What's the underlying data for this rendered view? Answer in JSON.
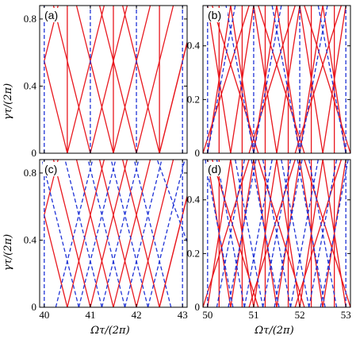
{
  "colors": {
    "red": "#e8161d",
    "blue": "#1f33d6",
    "frame": "#000000"
  },
  "ylabel": "γτ/(2π)",
  "xlabel": "Ωτ/(2π)",
  "chart_data": [
    {
      "type": "line",
      "tag": "(a)",
      "xlim": [
        39.9,
        43.1
      ],
      "ylim": [
        0,
        0.88
      ],
      "yticks": [
        0,
        0.4,
        0.8
      ],
      "ytick_labels": [
        "0",
        "0.4",
        "0.8"
      ],
      "xticks": [
        40,
        41,
        42,
        43
      ],
      "red_lines": [
        [
          [
            40.5,
            0
          ],
          [
            41.3,
            0.88
          ]
        ],
        [
          [
            41.0,
            0
          ],
          [
            41.8,
            0.88
          ]
        ],
        [
          [
            41.5,
            0
          ],
          [
            42.3,
            0.88
          ]
        ],
        [
          [
            42.0,
            0
          ],
          [
            42.8,
            0.88
          ]
        ],
        [
          [
            42.5,
            0
          ],
          [
            43.1,
            0.66
          ]
        ],
        [
          [
            40.0,
            0.55
          ],
          [
            40.5,
            0
          ]
        ],
        [
          [
            40.0,
            0.55
          ],
          [
            40.3,
            0.88
          ]
        ],
        [
          [
            41.0,
            0
          ],
          [
            40.2,
            0.88
          ]
        ],
        [
          [
            41.5,
            0
          ],
          [
            40.7,
            0.88
          ]
        ],
        [
          [
            42.0,
            0
          ],
          [
            41.2,
            0.88
          ]
        ],
        [
          [
            42.5,
            0
          ],
          [
            41.7,
            0.88
          ]
        ],
        [
          [
            43.1,
            0.66
          ],
          [
            42.5,
            0
          ]
        ],
        [
          [
            40.5,
            0
          ],
          [
            40.5,
            0.88
          ]
        ],
        [
          [
            41.5,
            0
          ],
          [
            41.5,
            0.88
          ]
        ],
        [
          [
            42.5,
            0
          ],
          [
            42.5,
            0.88
          ]
        ]
      ],
      "blue_lines": [
        [
          [
            40.0,
            0
          ],
          [
            40.0,
            0.88
          ]
        ],
        [
          [
            41.0,
            0
          ],
          [
            41.0,
            0.88
          ]
        ],
        [
          [
            42.0,
            0
          ],
          [
            42.0,
            0.88
          ]
        ],
        [
          [
            43.0,
            0
          ],
          [
            43.0,
            0.88
          ]
        ]
      ]
    },
    {
      "type": "line",
      "tag": "(b)",
      "xlim": [
        49.9,
        53.1
      ],
      "ylim": [
        0,
        0.55
      ],
      "yticks": [
        0,
        0.2,
        0.4
      ],
      "ytick_labels": [
        "0",
        "0.2",
        "0.4"
      ],
      "xticks": [
        50,
        51,
        52,
        53
      ],
      "red_lines": [
        [
          [
            50.0,
            0
          ],
          [
            50.5,
            0.55
          ]
        ],
        [
          [
            50.5,
            0
          ],
          [
            51.0,
            0.55
          ]
        ],
        [
          [
            51.0,
            0
          ],
          [
            51.5,
            0.55
          ]
        ],
        [
          [
            51.5,
            0
          ],
          [
            52.0,
            0.55
          ]
        ],
        [
          [
            52.0,
            0
          ],
          [
            52.5,
            0.55
          ]
        ],
        [
          [
            52.5,
            0
          ],
          [
            53.0,
            0.55
          ]
        ],
        [
          [
            50.5,
            0
          ],
          [
            50.0,
            0.55
          ]
        ],
        [
          [
            51.0,
            0
          ],
          [
            50.5,
            0.55
          ]
        ],
        [
          [
            51.5,
            0
          ],
          [
            51.0,
            0.55
          ]
        ],
        [
          [
            52.0,
            0
          ],
          [
            51.5,
            0.55
          ]
        ],
        [
          [
            52.5,
            0
          ],
          [
            52.0,
            0.55
          ]
        ],
        [
          [
            53.0,
            0
          ],
          [
            52.5,
            0.55
          ]
        ],
        [
          [
            49.9,
            0.0
          ],
          [
            50.9,
            0.55
          ]
        ],
        [
          [
            50.9,
            0
          ],
          [
            51.9,
            0.55
          ]
        ],
        [
          [
            51.9,
            0
          ],
          [
            52.9,
            0.55
          ]
        ],
        [
          [
            51.1,
            0
          ],
          [
            50.1,
            0.55
          ]
        ],
        [
          [
            52.1,
            0
          ],
          [
            51.1,
            0.55
          ]
        ],
        [
          [
            53.1,
            0
          ],
          [
            52.1,
            0.55
          ]
        ],
        [
          [
            50.25,
            0
          ],
          [
            50.25,
            0.55
          ]
        ],
        [
          [
            50.75,
            0
          ],
          [
            50.75,
            0.55
          ]
        ],
        [
          [
            51.25,
            0
          ],
          [
            51.25,
            0.55
          ]
        ],
        [
          [
            51.75,
            0
          ],
          [
            51.75,
            0.55
          ]
        ],
        [
          [
            52.25,
            0
          ],
          [
            52.25,
            0.55
          ]
        ],
        [
          [
            52.75,
            0
          ],
          [
            52.75,
            0.55
          ]
        ]
      ],
      "blue_lines": [
        [
          [
            50.0,
            0
          ],
          [
            50.0,
            0.55
          ]
        ],
        [
          [
            51.0,
            0
          ],
          [
            51.0,
            0.55
          ]
        ],
        [
          [
            52.0,
            0
          ],
          [
            52.0,
            0.55
          ]
        ],
        [
          [
            53.0,
            0
          ],
          [
            53.0,
            0.55
          ]
        ],
        [
          [
            50.0,
            0
          ],
          [
            50.6,
            0.55
          ]
        ],
        [
          [
            51.0,
            0
          ],
          [
            51.6,
            0.55
          ]
        ],
        [
          [
            52.0,
            0
          ],
          [
            52.6,
            0.55
          ]
        ],
        [
          [
            51.0,
            0
          ],
          [
            50.4,
            0.55
          ]
        ],
        [
          [
            52.0,
            0
          ],
          [
            51.4,
            0.55
          ]
        ],
        [
          [
            53.0,
            0
          ],
          [
            52.4,
            0.55
          ]
        ]
      ]
    },
    {
      "type": "line",
      "tag": "(c)",
      "xlim": [
        39.9,
        43.1
      ],
      "ylim": [
        0,
        0.88
      ],
      "yticks": [
        0,
        0.4,
        0.8
      ],
      "ytick_labels": [
        "0",
        "0.4",
        "0.8"
      ],
      "xticks": [
        40,
        41,
        42,
        43
      ],
      "xtick_labels": [
        "40",
        "41",
        "42",
        "43"
      ],
      "red_lines": [
        [
          [
            40.5,
            0
          ],
          [
            41.3,
            0.88
          ]
        ],
        [
          [
            41.0,
            0
          ],
          [
            41.8,
            0.88
          ]
        ],
        [
          [
            41.5,
            0
          ],
          [
            42.3,
            0.88
          ]
        ],
        [
          [
            42.0,
            0
          ],
          [
            42.8,
            0.88
          ]
        ],
        [
          [
            42.5,
            0
          ],
          [
            43.1,
            0.66
          ]
        ],
        [
          [
            40.0,
            0.55
          ],
          [
            40.5,
            0
          ]
        ],
        [
          [
            40.0,
            0.55
          ],
          [
            40.3,
            0.88
          ]
        ],
        [
          [
            41.0,
            0
          ],
          [
            40.2,
            0.88
          ]
        ],
        [
          [
            41.5,
            0
          ],
          [
            40.7,
            0.88
          ]
        ],
        [
          [
            42.0,
            0
          ],
          [
            41.2,
            0.88
          ]
        ],
        [
          [
            42.5,
            0
          ],
          [
            41.7,
            0.88
          ]
        ],
        [
          [
            43.1,
            0.66
          ],
          [
            42.5,
            0
          ]
        ]
      ],
      "blue_lines": [
        [
          [
            40.0,
            0
          ],
          [
            40.0,
            0.88
          ]
        ],
        [
          [
            43.0,
            0
          ],
          [
            43.0,
            0.88
          ]
        ],
        [
          [
            40.25,
            0
          ],
          [
            41.05,
            0.88
          ]
        ],
        [
          [
            40.75,
            0
          ],
          [
            41.55,
            0.88
          ]
        ],
        [
          [
            41.25,
            0
          ],
          [
            42.05,
            0.88
          ]
        ],
        [
          [
            41.75,
            0
          ],
          [
            42.55,
            0.88
          ]
        ],
        [
          [
            42.25,
            0
          ],
          [
            43.05,
            0.88
          ]
        ],
        [
          [
            40.75,
            0
          ],
          [
            39.95,
            0.88
          ]
        ],
        [
          [
            41.25,
            0
          ],
          [
            40.45,
            0.88
          ]
        ],
        [
          [
            41.75,
            0
          ],
          [
            40.95,
            0.88
          ]
        ],
        [
          [
            42.25,
            0
          ],
          [
            41.45,
            0.88
          ]
        ],
        [
          [
            42.75,
            0
          ],
          [
            41.95,
            0.88
          ]
        ],
        [
          [
            43.1,
            0.39
          ],
          [
            42.45,
            0.88
          ]
        ]
      ]
    },
    {
      "type": "line",
      "tag": "(d)",
      "xlim": [
        49.9,
        53.1
      ],
      "ylim": [
        0,
        0.55
      ],
      "yticks": [
        0,
        0.2,
        0.4
      ],
      "ytick_labels": [
        "0",
        "0.2",
        "0.4"
      ],
      "xticks": [
        50,
        51,
        52,
        53
      ],
      "xtick_labels": [
        "50",
        "51",
        "52",
        "53"
      ],
      "red_lines": [
        [
          [
            50.0,
            0
          ],
          [
            50.5,
            0.55
          ]
        ],
        [
          [
            50.5,
            0
          ],
          [
            51.0,
            0.55
          ]
        ],
        [
          [
            51.0,
            0
          ],
          [
            51.5,
            0.55
          ]
        ],
        [
          [
            51.5,
            0
          ],
          [
            52.0,
            0.55
          ]
        ],
        [
          [
            52.0,
            0
          ],
          [
            52.5,
            0.55
          ]
        ],
        [
          [
            52.5,
            0
          ],
          [
            53.0,
            0.55
          ]
        ],
        [
          [
            50.5,
            0
          ],
          [
            50.0,
            0.55
          ]
        ],
        [
          [
            51.0,
            0
          ],
          [
            50.5,
            0.55
          ]
        ],
        [
          [
            51.5,
            0
          ],
          [
            51.0,
            0.55
          ]
        ],
        [
          [
            52.0,
            0
          ],
          [
            51.5,
            0.55
          ]
        ],
        [
          [
            52.5,
            0
          ],
          [
            52.0,
            0.55
          ]
        ],
        [
          [
            53.0,
            0
          ],
          [
            52.5,
            0.55
          ]
        ],
        [
          [
            49.9,
            0.0
          ],
          [
            50.9,
            0.55
          ]
        ],
        [
          [
            50.9,
            0
          ],
          [
            51.9,
            0.55
          ]
        ],
        [
          [
            51.9,
            0
          ],
          [
            52.9,
            0.55
          ]
        ],
        [
          [
            51.1,
            0
          ],
          [
            50.1,
            0.55
          ]
        ],
        [
          [
            52.1,
            0
          ],
          [
            51.1,
            0.55
          ]
        ],
        [
          [
            53.1,
            0
          ],
          [
            52.1,
            0.55
          ]
        ],
        [
          [
            50.25,
            0
          ],
          [
            50.25,
            0.55
          ]
        ],
        [
          [
            50.75,
            0
          ],
          [
            50.75,
            0.55
          ]
        ],
        [
          [
            51.25,
            0
          ],
          [
            51.25,
            0.55
          ]
        ],
        [
          [
            51.75,
            0
          ],
          [
            51.75,
            0.55
          ]
        ],
        [
          [
            52.25,
            0
          ],
          [
            52.25,
            0.55
          ]
        ],
        [
          [
            52.75,
            0
          ],
          [
            52.75,
            0.55
          ]
        ]
      ],
      "blue_lines": [
        [
          [
            50.0,
            0
          ],
          [
            50.0,
            0.55
          ]
        ],
        [
          [
            53.0,
            0
          ],
          [
            53.0,
            0.55
          ]
        ],
        [
          [
            50.2,
            0
          ],
          [
            50.8,
            0.55
          ]
        ],
        [
          [
            50.8,
            0
          ],
          [
            51.4,
            0.55
          ]
        ],
        [
          [
            51.2,
            0
          ],
          [
            51.8,
            0.55
          ]
        ],
        [
          [
            51.8,
            0
          ],
          [
            52.4,
            0.55
          ]
        ],
        [
          [
            52.2,
            0
          ],
          [
            52.8,
            0.55
          ]
        ],
        [
          [
            50.8,
            0
          ],
          [
            50.2,
            0.55
          ]
        ],
        [
          [
            51.2,
            0
          ],
          [
            50.6,
            0.55
          ]
        ],
        [
          [
            51.8,
            0
          ],
          [
            51.2,
            0.55
          ]
        ],
        [
          [
            52.2,
            0
          ],
          [
            51.6,
            0.55
          ]
        ],
        [
          [
            52.8,
            0
          ],
          [
            52.2,
            0.55
          ]
        ],
        [
          [
            50.45,
            0
          ],
          [
            51.05,
            0.55
          ]
        ],
        [
          [
            51.45,
            0
          ],
          [
            52.05,
            0.55
          ]
        ],
        [
          [
            52.45,
            0
          ],
          [
            53.05,
            0.55
          ]
        ],
        [
          [
            51.55,
            0
          ],
          [
            50.95,
            0.55
          ]
        ],
        [
          [
            52.55,
            0
          ],
          [
            51.95,
            0.55
          ]
        ],
        [
          [
            50.55,
            0
          ],
          [
            49.95,
            0.55
          ]
        ]
      ]
    }
  ]
}
